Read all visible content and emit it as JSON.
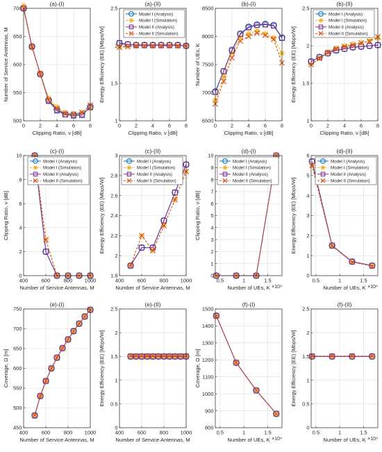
{
  "colors": {
    "model1_analysis": "#0072BD",
    "model1_sim": "#EDB120",
    "model2_analysis": "#7E2F8E",
    "model2_sim": "#D95319"
  },
  "chart_data": [
    {
      "id": "a1",
      "type": "line",
      "title": "(a)-(I)",
      "xlabel": "Clipping Ratio, ν [dB]",
      "ylabel": "Number of Service Antennas, M",
      "xlim": [
        0,
        8
      ],
      "ylim": [
        500,
        700
      ],
      "xticks": [
        0,
        2,
        4,
        6,
        8
      ],
      "yticks": [
        500,
        550,
        600,
        650,
        700
      ],
      "grid": true,
      "legend": "none",
      "x": [
        0,
        1,
        2,
        3,
        4,
        5,
        6,
        7,
        8
      ],
      "series": [
        {
          "name": "Model I (Analysis)",
          "style": "m1a",
          "values": [
            700,
            632,
            583,
            537,
            520,
            512,
            511,
            512,
            525
          ]
        },
        {
          "name": "Model I (Simulation)",
          "style": "m1s",
          "values": [
            705,
            630,
            585,
            540,
            525,
            515,
            512,
            515,
            522
          ]
        },
        {
          "name": "Model II (Analysis)",
          "style": "m2a",
          "values": [
            700,
            632,
            583,
            535,
            518,
            511,
            509,
            510,
            524
          ]
        },
        {
          "name": "Model II (Simulation)",
          "style": "m2s",
          "values": [
            700,
            632,
            583,
            537,
            522,
            512,
            512,
            515,
            528
          ]
        }
      ]
    },
    {
      "id": "a2",
      "type": "line",
      "title": "(a)-(II)",
      "xlabel": "Clipping Ratio, ν [dB]",
      "ylabel": "Energy Efficiency (EE) [Mbps/W]",
      "xlim": [
        0,
        8
      ],
      "ylim": [
        1,
        2.5
      ],
      "xticks": [
        0,
        2,
        4,
        6,
        8
      ],
      "yticks": [
        1,
        1.5,
        2,
        2.5
      ],
      "grid": true,
      "legend": "top-right",
      "x": [
        0,
        1,
        2,
        3,
        4,
        5,
        6,
        7,
        8
      ],
      "series": [
        {
          "name": "Model I (Analysis)",
          "style": "m1a",
          "values": [
            2.03,
            2.02,
            2.01,
            2.01,
            2.01,
            2.01,
            2.01,
            2.01,
            2.0
          ]
        },
        {
          "name": "Model I (Simulation)",
          "style": "m1s",
          "values": [
            1.99,
            1.99,
            2.0,
            2.0,
            2.0,
            2.0,
            2.0,
            2.0,
            2.0
          ]
        },
        {
          "name": "Model II (Analysis)",
          "style": "m2a",
          "values": [
            2.04,
            2.02,
            2.01,
            2.01,
            2.01,
            2.01,
            2.01,
            2.01,
            2.0
          ]
        },
        {
          "name": "Model II (Simulation)",
          "style": "m2s",
          "values": [
            1.98,
            1.99,
            2.0,
            2.0,
            2.0,
            2.0,
            2.0,
            2.0,
            2.0
          ]
        }
      ]
    },
    {
      "id": "b1",
      "type": "line",
      "title": "(b)-(I)",
      "xlabel": "Clipping Ratio, ν [dB]",
      "ylabel": "Number of UEs, K",
      "xlim": [
        0,
        8
      ],
      "ylim": [
        6500,
        8500
      ],
      "xticks": [
        0,
        2,
        4,
        6,
        8
      ],
      "yticks": [
        6500,
        7000,
        7500,
        8000,
        8500
      ],
      "grid": true,
      "legend": "none",
      "x": [
        0,
        1,
        2,
        3,
        4,
        5,
        6,
        7,
        8
      ],
      "series": [
        {
          "name": "Model I (Analysis)",
          "style": "m1a",
          "values": [
            7020,
            7380,
            7760,
            8050,
            8170,
            8210,
            8220,
            8200,
            7980
          ]
        },
        {
          "name": "Model I (Simulation)",
          "style": "m1s",
          "values": [
            6870,
            7280,
            7700,
            7980,
            8050,
            8100,
            8050,
            7980,
            7700
          ]
        },
        {
          "name": "Model II (Analysis)",
          "style": "m2a",
          "values": [
            7010,
            7380,
            7750,
            8040,
            8160,
            8200,
            8210,
            8190,
            7970
          ]
        },
        {
          "name": "Model II (Simulation)",
          "style": "m2s",
          "values": [
            6800,
            7200,
            7620,
            7920,
            8000,
            8060,
            8020,
            7950,
            7530
          ]
        }
      ]
    },
    {
      "id": "b2",
      "type": "line",
      "title": "(b)-(II)",
      "xlabel": "Clipping Ratio, ν [dB]",
      "ylabel": "Energy Efficiency (EE) [Mbps/W]",
      "xlim": [
        0,
        8
      ],
      "ylim": [
        1,
        2.5
      ],
      "xticks": [
        0,
        2,
        4,
        6,
        8
      ],
      "yticks": [
        1,
        1.5,
        2,
        2.5
      ],
      "grid": true,
      "legend": "top-left",
      "x": [
        0,
        1,
        2,
        3,
        4,
        5,
        6,
        7,
        8
      ],
      "series": [
        {
          "name": "Model I (Analysis)",
          "style": "m1a",
          "values": [
            1.79,
            1.85,
            1.9,
            1.94,
            1.96,
            1.98,
            1.99,
            2.0,
            2.01
          ]
        },
        {
          "name": "Model I (Simulation)",
          "style": "m1s",
          "values": [
            1.75,
            1.84,
            1.92,
            1.97,
            2.0,
            2.02,
            2.04,
            2.07,
            2.1
          ]
        },
        {
          "name": "Model II (Analysis)",
          "style": "m2a",
          "values": [
            1.79,
            1.85,
            1.9,
            1.94,
            1.96,
            1.98,
            1.99,
            2.0,
            2.01
          ]
        },
        {
          "name": "Model II (Simulation)",
          "style": "m2s",
          "values": [
            1.75,
            1.83,
            1.91,
            1.96,
            1.99,
            2.01,
            2.04,
            2.06,
            2.12
          ]
        }
      ]
    },
    {
      "id": "c1",
      "type": "line",
      "title": "(c)-(I)",
      "xlabel": "Number of Service Antennas, M",
      "ylabel": "Clipping Ratio, ν [dB]",
      "xlim": [
        400,
        1000
      ],
      "ylim": [
        0,
        10
      ],
      "xticks": [
        400,
        600,
        800,
        1000
      ],
      "yticks": [
        0,
        2,
        4,
        6,
        8,
        10
      ],
      "grid": true,
      "legend": "top-right",
      "x": [
        500,
        600,
        700,
        800,
        900,
        1000
      ],
      "series": [
        {
          "name": "Model I (Analysis)",
          "style": "m1a",
          "values": [
            10,
            2,
            0,
            0,
            0,
            0
          ]
        },
        {
          "name": "Model I (Simulation)",
          "style": "m1s",
          "values": [
            10,
            3,
            0,
            0,
            0,
            0
          ]
        },
        {
          "name": "Model II (Analysis)",
          "style": "m2a",
          "values": [
            10,
            2,
            0,
            0,
            0,
            0
          ]
        },
        {
          "name": "Model II (Simulation)",
          "style": "m2s",
          "values": [
            10,
            3,
            0,
            0,
            0,
            0
          ]
        }
      ]
    },
    {
      "id": "c2",
      "type": "line",
      "title": "(c)-(II)",
      "xlabel": "Number of Service Antennas, M",
      "ylabel": "Energy Efficiency (EE) [Mbps/W]",
      "xlim": [
        400,
        1000
      ],
      "ylim": [
        1.8,
        3
      ],
      "xticks": [
        400,
        600,
        800,
        1000
      ],
      "yticks": [
        1.8,
        2,
        2.2,
        2.4,
        2.6,
        2.8,
        3
      ],
      "grid": true,
      "legend": "top-left",
      "x": [
        500,
        600,
        700,
        800,
        900,
        1000
      ],
      "series": [
        {
          "name": "Model I (Analysis)",
          "style": "m1a",
          "values": [
            1.9,
            2.08,
            2.08,
            2.35,
            2.63,
            2.91
          ]
        },
        {
          "name": "Model I (Simulation)",
          "style": "m1s",
          "values": [
            1.9,
            2.2,
            2.05,
            2.3,
            2.56,
            2.84
          ]
        },
        {
          "name": "Model II (Analysis)",
          "style": "m2a",
          "values": [
            1.9,
            2.08,
            2.08,
            2.35,
            2.63,
            2.91
          ]
        },
        {
          "name": "Model II (Simulation)",
          "style": "m2s",
          "values": [
            1.9,
            2.2,
            2.05,
            2.3,
            2.56,
            2.84
          ]
        }
      ]
    },
    {
      "id": "d1",
      "type": "line",
      "title": "(d)-(I)",
      "xlabel": "Number of UEs,  K",
      "ylabel": "Clipping Ratio, ν [dB]",
      "x_exponent": "×10⁴",
      "xlim": [
        0.4,
        1.8
      ],
      "ylim": [
        0,
        10
      ],
      "xticks": [
        0.5,
        1,
        1.5
      ],
      "yticks": [
        0,
        1,
        2,
        3,
        4,
        5,
        6,
        7,
        8,
        9,
        10
      ],
      "grid": true,
      "legend": "top-left",
      "x": [
        0.42,
        0.84,
        1.26,
        1.68
      ],
      "series": [
        {
          "name": "Model I (Analysis)",
          "style": "m1a",
          "values": [
            0,
            0,
            0,
            10
          ]
        },
        {
          "name": "Model I (Simulation)",
          "style": "m1s",
          "values": [
            0,
            0,
            0,
            10
          ]
        },
        {
          "name": "Model II (Analysis)",
          "style": "m2a",
          "values": [
            0,
            0,
            0,
            10
          ]
        },
        {
          "name": "Model II (Simulation)",
          "style": "m2s",
          "values": [
            0,
            0,
            0,
            10
          ]
        }
      ]
    },
    {
      "id": "d2",
      "type": "line",
      "title": "(d)-(II)",
      "xlabel": "Number of UEs,  K",
      "ylabel": "Energy Efficiency (EE) [Mbps/W]",
      "x_exponent": "×10⁴",
      "xlim": [
        0.4,
        1.8
      ],
      "ylim": [
        0,
        6
      ],
      "xticks": [
        0.5,
        1,
        1.5
      ],
      "yticks": [
        0,
        1,
        2,
        3,
        4,
        5,
        6
      ],
      "grid": true,
      "legend": "top-right",
      "x": [
        0.42,
        0.84,
        1.26,
        1.68
      ],
      "series": [
        {
          "name": "Model I (Analysis)",
          "style": "m1a",
          "values": [
            5.7,
            1.5,
            0.7,
            0.5
          ]
        },
        {
          "name": "Model I (Simulation)",
          "style": "m1s",
          "values": [
            5.5,
            1.48,
            0.68,
            0.48
          ]
        },
        {
          "name": "Model II (Analysis)",
          "style": "m2a",
          "values": [
            5.7,
            1.5,
            0.7,
            0.5
          ]
        },
        {
          "name": "Model II (Simulation)",
          "style": "m2s",
          "values": [
            5.5,
            1.48,
            0.68,
            0.48
          ]
        }
      ]
    },
    {
      "id": "e1",
      "type": "line",
      "title": "(e)-(I)",
      "xlabel": "Number of Service Antennas,  M",
      "ylabel": "Coverage, Ω [m]",
      "xlim": [
        400,
        1000
      ],
      "ylim": [
        450,
        750
      ],
      "xticks": [
        400,
        600,
        800,
        1000
      ],
      "yticks": [
        450,
        500,
        550,
        600,
        650,
        700,
        750
      ],
      "grid": true,
      "legend": "none",
      "x": [
        500,
        550,
        600,
        650,
        700,
        750,
        800,
        850,
        900,
        950,
        1000
      ],
      "series": [
        {
          "name": "Model I (Analysis)",
          "style": "m1a",
          "values": [
            481,
            530,
            568,
            600,
            627,
            651,
            673,
            694,
            713,
            731,
            748
          ]
        },
        {
          "name": "Model I (Simulation)",
          "style": "m1s",
          "values": [
            481,
            530,
            568,
            600,
            627,
            651,
            673,
            694,
            713,
            731,
            748
          ]
        },
        {
          "name": "Model II (Analysis)",
          "style": "m2a",
          "values": [
            481,
            530,
            568,
            600,
            627,
            651,
            673,
            694,
            713,
            731,
            748
          ]
        },
        {
          "name": "Model II (Simulation)",
          "style": "m2s",
          "values": [
            481,
            530,
            568,
            600,
            627,
            651,
            673,
            694,
            713,
            731,
            748
          ]
        }
      ]
    },
    {
      "id": "e2",
      "type": "line",
      "title": "(e)-(II)",
      "xlabel": "Number of Service Antennas,  M",
      "ylabel": "Energy Efficiency (EE) [Mbps/W]",
      "xlim": [
        400,
        1000
      ],
      "ylim": [
        0,
        2.5
      ],
      "xticks": [
        400,
        600,
        800,
        1000
      ],
      "yticks": [
        0,
        0.5,
        1,
        1.5,
        2,
        2.5
      ],
      "grid": true,
      "legend": "none",
      "x": [
        500,
        550,
        600,
        650,
        700,
        750,
        800,
        850,
        900,
        950,
        1000
      ],
      "series": [
        {
          "name": "Model I (Analysis)",
          "style": "m1a",
          "values": [
            1.5,
            1.5,
            1.5,
            1.5,
            1.5,
            1.5,
            1.5,
            1.5,
            1.5,
            1.5,
            1.5
          ]
        },
        {
          "name": "Model I (Simulation)",
          "style": "m1s",
          "values": [
            1.5,
            1.5,
            1.5,
            1.5,
            1.5,
            1.5,
            1.5,
            1.5,
            1.5,
            1.5,
            1.5
          ]
        },
        {
          "name": "Model II (Analysis)",
          "style": "m2a",
          "values": [
            1.5,
            1.5,
            1.5,
            1.5,
            1.5,
            1.5,
            1.5,
            1.5,
            1.5,
            1.5,
            1.5
          ]
        },
        {
          "name": "Model II (Simulation)",
          "style": "m2s",
          "values": [
            1.51,
            1.51,
            1.51,
            1.51,
            1.51,
            1.51,
            1.51,
            1.51,
            1.51,
            1.51,
            1.51
          ]
        }
      ]
    },
    {
      "id": "f1",
      "type": "line",
      "title": "(f)-(I)",
      "xlabel": "Number of UEs,  K",
      "ylabel": "Coverage, Ω [m]",
      "x_exponent": "×10⁴",
      "xlim": [
        0.4,
        1.8
      ],
      "ylim": [
        800,
        1500
      ],
      "xticks": [
        0.5,
        1,
        1.5
      ],
      "yticks": [
        800,
        900,
        1000,
        1100,
        1200,
        1300,
        1400,
        1500
      ],
      "grid": true,
      "legend": "none",
      "x": [
        0.42,
        0.84,
        1.26,
        1.68
      ],
      "series": [
        {
          "name": "Model I (Analysis)",
          "style": "m1a",
          "values": [
            1460,
            1183,
            1020,
            882
          ]
        },
        {
          "name": "Model I (Simulation)",
          "style": "m1s",
          "values": [
            1460,
            1183,
            1020,
            882
          ]
        },
        {
          "name": "Model II (Analysis)",
          "style": "m2a",
          "values": [
            1460,
            1183,
            1020,
            882
          ]
        },
        {
          "name": "Model II (Simulation)",
          "style": "m2s",
          "values": [
            1460,
            1183,
            1020,
            882
          ]
        }
      ]
    },
    {
      "id": "f2",
      "type": "line",
      "title": "(f)-(II)",
      "xlabel": "Number of UEs,  K",
      "ylabel": "Energy Efficiency (EE) [Mbps/W]",
      "x_exponent": "×10⁴",
      "xlim": [
        0.4,
        1.8
      ],
      "ylim": [
        0,
        2.5
      ],
      "xticks": [
        0.5,
        1,
        1.5
      ],
      "yticks": [
        0,
        0.5,
        1,
        1.5,
        2,
        2.5
      ],
      "grid": true,
      "legend": "none",
      "x": [
        0.42,
        0.84,
        1.26,
        1.68
      ],
      "series": [
        {
          "name": "Model I (Analysis)",
          "style": "m1a",
          "values": [
            1.5,
            1.5,
            1.5,
            1.5
          ]
        },
        {
          "name": "Model I (Simulation)",
          "style": "m1s",
          "values": [
            1.5,
            1.5,
            1.5,
            1.5
          ]
        },
        {
          "name": "Model II (Analysis)",
          "style": "m2a",
          "values": [
            1.5,
            1.5,
            1.5,
            1.5
          ]
        },
        {
          "name": "Model II (Simulation)",
          "style": "m2s",
          "values": [
            1.51,
            1.51,
            1.51,
            1.51
          ]
        }
      ]
    }
  ]
}
